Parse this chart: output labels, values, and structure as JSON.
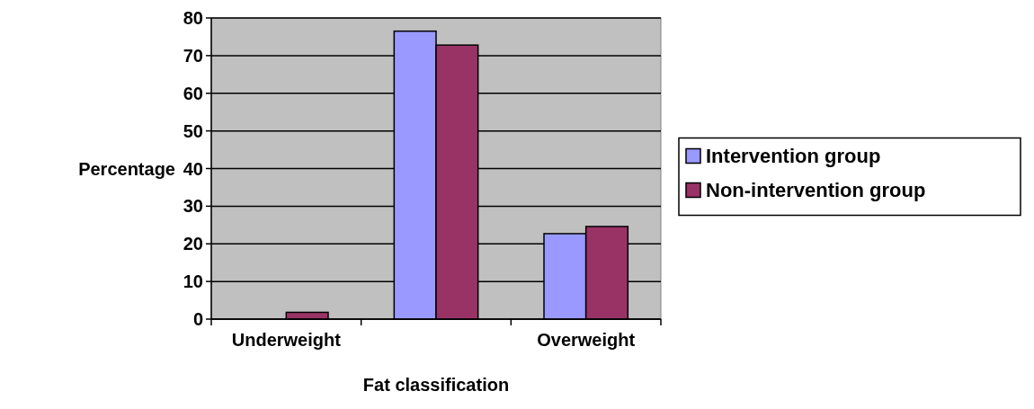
{
  "chart_data": {
    "type": "bar",
    "xlabel": "Fat classification",
    "ylabel": "Percentage",
    "categories": [
      "Underweight",
      null,
      "Overweight"
    ],
    "series": [
      {
        "name": "Intervention group",
        "color": "#9999ff",
        "values": [
          0,
          76.5,
          22.7
        ]
      },
      {
        "name": "Non-intervention group",
        "color": "#993366",
        "values": [
          1.8,
          72.8,
          24.6
        ]
      }
    ],
    "ylim": [
      0,
      80
    ],
    "yticks": [
      0,
      10,
      20,
      30,
      40,
      50,
      60,
      70,
      80
    ],
    "grid": "y",
    "legend": "right"
  }
}
